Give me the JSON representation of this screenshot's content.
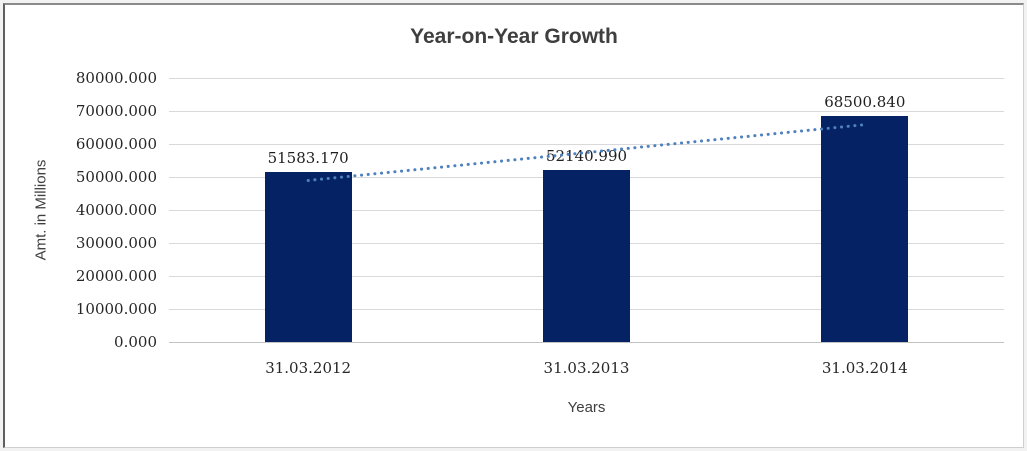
{
  "chart_data": {
    "type": "bar",
    "title": "Year-on-Year Growth",
    "categories": [
      "31.03.2012",
      "31.03.2013",
      "31.03.2014"
    ],
    "values": [
      51583.17,
      52140.99,
      68500.84
    ],
    "data_labels": [
      "51583.170",
      "52140.990",
      "68500.840"
    ],
    "xlabel": "Years",
    "ylabel": "Amt. in Millions",
    "ylim": [
      0,
      80000
    ],
    "ytick_step": 10000,
    "ytick_labels": [
      "80000.000",
      "70000.000",
      "60000.000",
      "50000.000",
      "40000.000",
      "30000.000",
      "20000.000",
      "10000.000",
      "0.000"
    ],
    "grid": true,
    "legend": "none",
    "bar_color": "#052364",
    "gridline_color": "#d9d9d9",
    "axis_line_color": "#c3c3c3",
    "tick_text_color": "#262626",
    "title_color": "#3f3f3f",
    "trendline": {
      "type": "linear",
      "style": "dotted",
      "color": "#4e81bd"
    }
  }
}
